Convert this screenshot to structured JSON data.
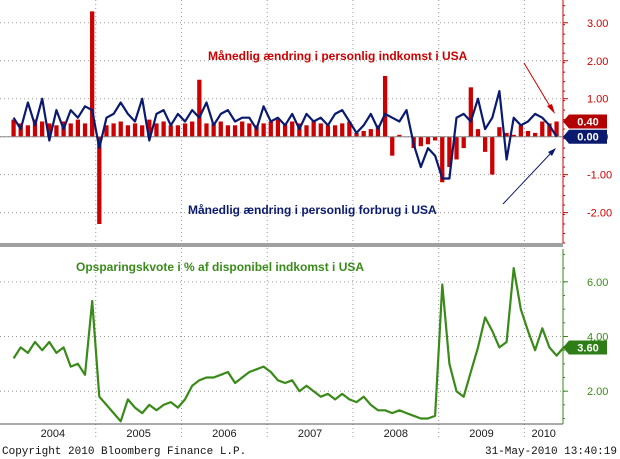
{
  "colors": {
    "income": "#cc0000",
    "consumption": "#0a1a6e",
    "saving": "#3a8a1a",
    "income_badge": "#b30000",
    "consumption_badge": "#0a1a6e",
    "saving_badge": "#2e7d16",
    "grid": "#9a9a9a",
    "divider": "#a0a0a0"
  },
  "footer": {
    "copyright": "Copyright 2010 Bloomberg Finance L.P.",
    "timestamp": "31-May-2010 13:40:19"
  },
  "x_axis": {
    "years": [
      "2004",
      "2005",
      "2006",
      "2007",
      "2008",
      "2009",
      "2010"
    ]
  },
  "chart_data": [
    {
      "type": "bar+line",
      "panel": "top",
      "ylim": [
        -2.8,
        3.6
      ],
      "yticks": [
        -2.0,
        -1.0,
        0.0,
        1.0,
        2.0,
        3.0
      ],
      "ytick_labels": [
        "-2.00",
        "-1.00",
        "0.00",
        "1.00",
        "2.00",
        "3.00"
      ],
      "grid": true,
      "x_start": "2004-01",
      "series": [
        {
          "name": "Månedlig ændring i personlig indkomst i USA",
          "kind": "bar",
          "values": [
            0.45,
            0.35,
            0.3,
            0.45,
            0.4,
            0.35,
            0.3,
            0.4,
            0.35,
            0.45,
            0.35,
            3.3,
            -2.3,
            0.3,
            0.35,
            0.4,
            0.3,
            0.35,
            0.3,
            0.45,
            0.35,
            0.4,
            0.3,
            0.3,
            0.35,
            0.4,
            1.5,
            0.35,
            0.35,
            0.4,
            0.3,
            0.3,
            0.4,
            0.35,
            0.3,
            0.35,
            0.4,
            0.45,
            0.35,
            0.4,
            0.35,
            0.3,
            0.4,
            0.35,
            0.3,
            0.3,
            0.35,
            0.4,
            0.1,
            0.15,
            0.2,
            0.3,
            1.6,
            -0.5,
            0.05,
            0.0,
            -0.3,
            -0.25,
            -0.2,
            -0.1,
            -1.2,
            -0.8,
            -0.6,
            -0.3,
            1.3,
            0.2,
            -0.4,
            -1.0,
            0.25,
            0.1,
            0.05,
            0.3,
            0.15,
            0.1,
            0.4,
            0.35,
            0.4
          ]
        },
        {
          "name": "Månedlig ændring i personlig forbrug i USA",
          "kind": "line",
          "values": [
            0.5,
            0.2,
            0.9,
            0.3,
            1.0,
            -0.1,
            0.7,
            0.2,
            0.7,
            0.5,
            0.8,
            0.7,
            -0.3,
            0.5,
            0.6,
            0.9,
            0.6,
            0.4,
            1.0,
            -0.1,
            0.6,
            0.7,
            0.3,
            0.6,
            0.4,
            0.7,
            0.5,
            0.9,
            0.3,
            0.6,
            0.7,
            0.4,
            0.5,
            0.5,
            0.2,
            0.8,
            0.4,
            0.5,
            0.3,
            0.6,
            0.2,
            0.6,
            0.4,
            0.5,
            0.3,
            0.6,
            0.7,
            0.4,
            0.1,
            0.3,
            0.6,
            0.2,
            0.6,
            0.5,
            0.4,
            0.7,
            -0.2,
            -0.8,
            -0.3,
            -0.5,
            -1.1,
            -1.1,
            0.5,
            0.6,
            0.4,
            1.0,
            0.2,
            0.5,
            1.2,
            -0.6,
            0.5,
            0.3,
            0.4,
            0.6,
            0.5,
            0.3,
            0.0
          ]
        }
      ],
      "last_value_labels": [
        "0.40",
        "0.00"
      ]
    },
    {
      "type": "line",
      "panel": "bottom",
      "ylim": [
        0.8,
        7.2
      ],
      "yticks": [
        2.0,
        4.0,
        6.0
      ],
      "ytick_labels": [
        "2.00",
        "4.00",
        "6.00"
      ],
      "grid": true,
      "x_start": "2004-01",
      "series": [
        {
          "name": "Opsparingskvote i % af disponibel indkomst i USA",
          "values": [
            3.2,
            3.6,
            3.4,
            3.8,
            3.5,
            3.8,
            3.4,
            3.6,
            2.9,
            3.0,
            2.6,
            5.3,
            1.8,
            1.5,
            1.2,
            0.9,
            1.7,
            1.4,
            1.2,
            1.5,
            1.3,
            1.5,
            1.6,
            1.4,
            1.7,
            2.2,
            2.4,
            2.5,
            2.5,
            2.6,
            2.7,
            2.3,
            2.5,
            2.7,
            2.8,
            2.9,
            2.7,
            2.4,
            2.3,
            2.4,
            2.0,
            2.2,
            2.0,
            1.8,
            1.9,
            1.7,
            1.9,
            1.7,
            1.6,
            1.8,
            1.5,
            1.3,
            1.3,
            1.2,
            1.3,
            1.2,
            1.1,
            1.0,
            1.0,
            1.1,
            5.9,
            3.0,
            2.0,
            1.8,
            2.7,
            3.6,
            4.7,
            4.2,
            3.6,
            3.8,
            6.5,
            5.0,
            4.2,
            3.5,
            4.3,
            3.6,
            3.3,
            3.6,
            3.7,
            3.4,
            3.6
          ]
        }
      ],
      "last_value_labels": [
        "3.60"
      ]
    }
  ],
  "annotations": {
    "income": "Månedlig ændring i personlig indkomst i USA",
    "consumption": "Månedlig ændring i personlig forbrug i USA",
    "saving": "Opsparingskvote i % af disponibel indkomst i USA"
  }
}
